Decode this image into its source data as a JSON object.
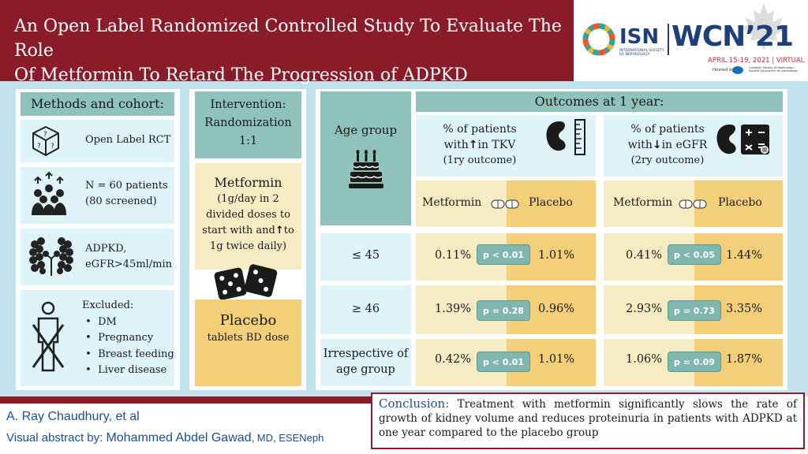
{
  "header": {
    "title_line1": "An Open Label Randomized Controlled Study To Evaluate The Role",
    "title_line2": "Of Metformin To Retard The Progression of ADPKD"
  },
  "logo": {
    "isn": "ISN",
    "isn_sub": "INTERNATIONAL SOCIETY OF NEPHROLOGY",
    "wcn": "WCN’21",
    "dates": "APRIL 15-19, 2021 | VIRTUAL",
    "hosted": "Hosted by",
    "host_org": "Canadian Society of Nephrology / Société canadienne de néphrologie"
  },
  "methods": {
    "title": "Methods and cohort:",
    "design": "Open Label RCT",
    "n_line1": "N = 60 patients",
    "n_line2": "(80 screened)",
    "inc_line1": "ADPKD,",
    "inc_line2": "eGFR>45ml/min",
    "excluded_title": "Excluded:",
    "excluded": [
      "DM",
      "Pregnancy",
      "Breast feeding",
      "Liver disease"
    ]
  },
  "intervention": {
    "title": "Intervention:",
    "rand_line1": "Randomization",
    "rand_line2": "1:1",
    "metformin_title": "Metformin",
    "metformin_l1": "(1g/day in 2",
    "metformin_l2": "divided doses to",
    "metformin_l3a": "start with and",
    "metformin_l3b": "to",
    "metformin_l4": "1g twice daily)",
    "placebo_title": "Placebo",
    "placebo_desc": "tablets BD dose"
  },
  "outcomes": {
    "title": "Outcomes  at 1 year:",
    "age_group": "Age group",
    "tkv_l1": "% of patients",
    "tkv_l2a": "with",
    "tkv_l2b": "in TKV",
    "tkv_l3": "(1ry outcome)",
    "egfr_l1": "% of patients",
    "egfr_l2a": "with",
    "egfr_l2b": "in eGFR",
    "egfr_l3": "(2ry outcome)",
    "metformin": "Metformin",
    "placebo": "Placebo",
    "rows": [
      {
        "age": "≤ 45",
        "tkv_m": "0.11%",
        "tkv_p": "p < 0.01",
        "tkv_pl": "1.01%",
        "egfr_m": "0.41%",
        "egfr_p": "p < 0.05",
        "egfr_pl": "1.44%"
      },
      {
        "age": "≥ 46",
        "tkv_m": "1.39%",
        "tkv_p": "p = 0.28",
        "tkv_pl": "0.96%",
        "egfr_m": "2.93%",
        "egfr_p": "p = 0.73",
        "egfr_pl": "3.35%"
      },
      {
        "age_l1": "Irrespective of",
        "age_l2": "age group",
        "tkv_m": "0.42%",
        "tkv_p": "p < 0.01",
        "tkv_pl": "1.01%",
        "egfr_m": "1.06%",
        "egfr_p": "p = 0.09",
        "egfr_pl": "1.87%"
      }
    ]
  },
  "footer": {
    "author": "A. Ray Chaudhury, et al",
    "va_label": "Visual abstract by: ",
    "va_name": "Mohammed Abdel Gawad",
    "va_suffix": ", MD, ESENeph",
    "conclusion_label": "Conclusion:",
    "conclusion_text": " Treatment with metformin significantly slows the rate of growth of kidney volume and reduces proteinuria in patients with ADPKD at one year compared to the placebo group"
  },
  "colors": {
    "maroon": "#8a1c2a",
    "teal": "#8fc2bb",
    "light": "#dff4f9",
    "cream": "#f5ecc4",
    "gold": "#f3cf79",
    "pill": "#7fb7b0"
  }
}
